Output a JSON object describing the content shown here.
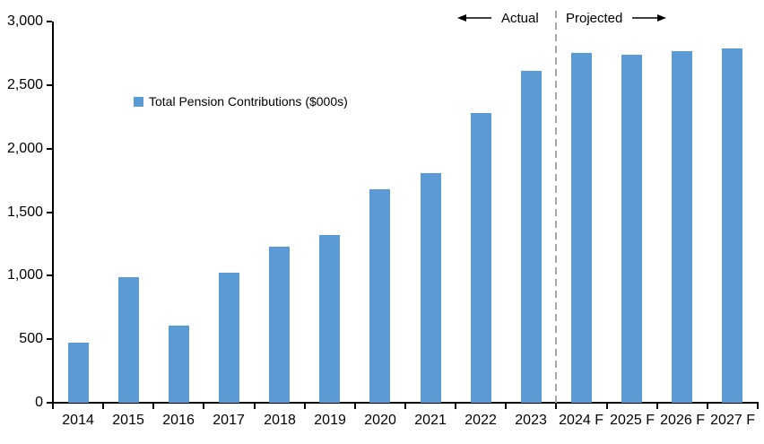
{
  "chart_data": {
    "type": "bar",
    "title": "",
    "legend": [
      {
        "label": "Total Pension Contributions ($000s)",
        "color": "#5B9BD5"
      }
    ],
    "categories": [
      "2014",
      "2015",
      "2016",
      "2017",
      "2018",
      "2019",
      "2020",
      "2021",
      "2022",
      "2023",
      "2024 F",
      "2025 F",
      "2026 F",
      "2027 F"
    ],
    "values": [
      470,
      990,
      610,
      1020,
      1230,
      1320,
      1680,
      1810,
      2280,
      2610,
      2750,
      2740,
      2770,
      2790
    ],
    "xlabel": "",
    "ylabel": "",
    "ylim": [
      0,
      3000
    ],
    "yticks": [
      {
        "value": 0,
        "label": "0"
      },
      {
        "value": 500,
        "label": "500"
      },
      {
        "value": 1000,
        "label": "1,000"
      },
      {
        "value": 1500,
        "label": "1,500"
      },
      {
        "value": 2000,
        "label": "2,000"
      },
      {
        "value": 2500,
        "label": "2,500"
      },
      {
        "value": 3000,
        "label": "3,000"
      }
    ],
    "grid": false,
    "legend_position": "inside-upper-left",
    "bar_color": "#5B9BD5",
    "axis_color": "#000000",
    "background_color": "#ffffff",
    "separator": {
      "after_category_index": 9,
      "style": "dashed",
      "color": "#a6a6a6"
    },
    "annotations": {
      "left_label": "Actual",
      "right_label": "Projected"
    }
  }
}
